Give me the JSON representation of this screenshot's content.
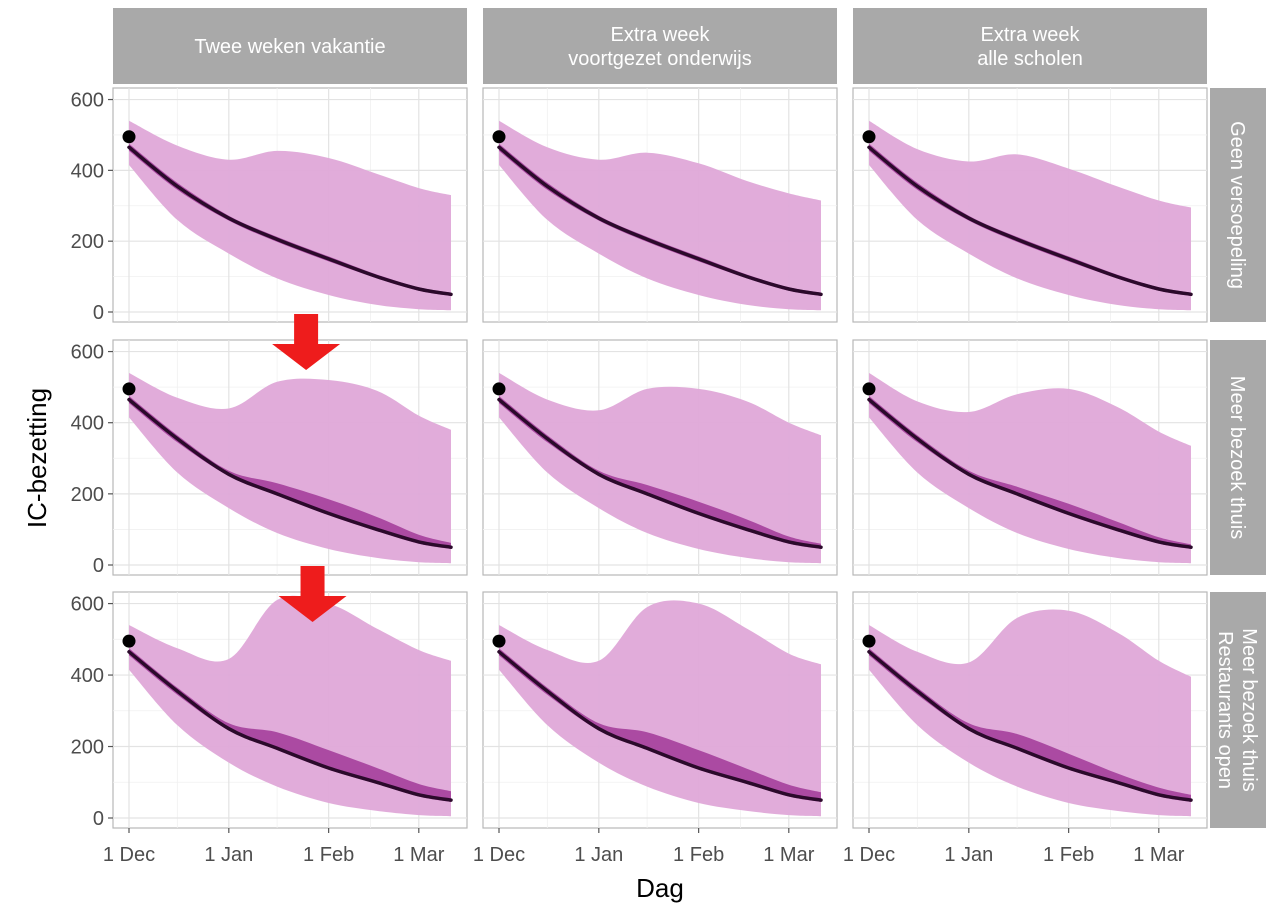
{
  "chart_data": {
    "type": "area",
    "xlabel": "Dag",
    "ylabel": "IC-bezetting",
    "x_ticks": [
      "1 Dec",
      "1 Jan",
      "1 Feb",
      "1 Mar"
    ],
    "x_tick_dates": [
      "2020-12-01",
      "2021-01-01",
      "2021-02-01",
      "2021-03-01"
    ],
    "xlim": [
      "2020-12-01",
      "2021-03-11"
    ],
    "y_ticks": [
      0,
      200,
      400,
      600
    ],
    "ylim": [
      0,
      610
    ],
    "grid": true,
    "colors": {
      "wide_band": "#dfa8d8",
      "narrow_band": "#a8449f",
      "median_line": "#2b0a2b",
      "observed_point": "#000000",
      "arrow": "#ee1c1c",
      "strip": "#a9a9a9"
    },
    "observed": {
      "x": "2020-12-01",
      "y": 495
    },
    "x": [
      "2020-12-01",
      "2020-12-16",
      "2021-01-01",
      "2021-01-16",
      "2021-02-01",
      "2021-02-16",
      "2021-03-01",
      "2021-03-11"
    ],
    "columns": [
      "Twee weken vakantie",
      "Extra week\nvoortgezet onderwijs",
      "Extra week\nalle scholen"
    ],
    "rows": [
      "Geen versoepeling",
      "Meer bezoek thuis",
      "Meer bezoek thuis\nRestaurants open"
    ],
    "panels": [
      {
        "row": 0,
        "col": 0,
        "median": [
          465,
          355,
          265,
          205,
          150,
          100,
          65,
          50
        ],
        "narrow_lower": [
          455,
          345,
          258,
          198,
          143,
          95,
          60,
          45
        ],
        "narrow_upper": [
          475,
          365,
          272,
          212,
          157,
          106,
          70,
          55
        ],
        "wide_lower": [
          415,
          260,
          165,
          95,
          48,
          20,
          8,
          5
        ],
        "wide_upper": [
          540,
          470,
          430,
          455,
          435,
          390,
          350,
          330
        ]
      },
      {
        "row": 0,
        "col": 1,
        "median": [
          465,
          355,
          265,
          205,
          150,
          100,
          65,
          50
        ],
        "narrow_lower": [
          455,
          345,
          258,
          198,
          143,
          95,
          60,
          45
        ],
        "narrow_upper": [
          475,
          365,
          272,
          212,
          157,
          106,
          70,
          55
        ],
        "wide_lower": [
          415,
          260,
          165,
          95,
          48,
          20,
          8,
          5
        ],
        "wide_upper": [
          540,
          465,
          430,
          450,
          420,
          370,
          335,
          315
        ]
      },
      {
        "row": 0,
        "col": 2,
        "median": [
          465,
          355,
          265,
          205,
          150,
          100,
          65,
          50
        ],
        "narrow_lower": [
          455,
          345,
          258,
          198,
          143,
          95,
          60,
          45
        ],
        "narrow_upper": [
          475,
          365,
          272,
          212,
          157,
          106,
          70,
          55
        ],
        "wide_lower": [
          415,
          260,
          165,
          95,
          48,
          20,
          8,
          5
        ],
        "wide_upper": [
          540,
          460,
          425,
          445,
          405,
          355,
          315,
          295
        ]
      },
      {
        "row": 1,
        "col": 0,
        "median": [
          465,
          355,
          255,
          200,
          145,
          100,
          65,
          50
        ],
        "narrow_lower": [
          455,
          345,
          250,
          195,
          140,
          95,
          60,
          45
        ],
        "narrow_upper": [
          475,
          365,
          265,
          230,
          185,
          135,
          85,
          62
        ],
        "wide_lower": [
          415,
          260,
          160,
          90,
          45,
          20,
          8,
          5
        ],
        "wide_upper": [
          540,
          470,
          440,
          515,
          520,
          490,
          420,
          380
        ]
      },
      {
        "row": 1,
        "col": 1,
        "median": [
          465,
          355,
          255,
          200,
          145,
          100,
          65,
          50
        ],
        "narrow_lower": [
          455,
          345,
          250,
          195,
          140,
          95,
          60,
          45
        ],
        "narrow_upper": [
          475,
          365,
          265,
          225,
          178,
          128,
          80,
          60
        ],
        "wide_lower": [
          415,
          260,
          160,
          90,
          45,
          20,
          8,
          5
        ],
        "wide_upper": [
          540,
          465,
          435,
          495,
          495,
          460,
          400,
          365
        ]
      },
      {
        "row": 1,
        "col": 2,
        "median": [
          465,
          355,
          255,
          200,
          145,
          100,
          65,
          50
        ],
        "narrow_lower": [
          455,
          345,
          250,
          195,
          140,
          95,
          60,
          45
        ],
        "narrow_upper": [
          475,
          365,
          265,
          220,
          172,
          122,
          78,
          58
        ],
        "wide_lower": [
          415,
          260,
          160,
          90,
          45,
          20,
          8,
          5
        ],
        "wide_upper": [
          540,
          460,
          430,
          480,
          495,
          445,
          375,
          335
        ]
      },
      {
        "row": 2,
        "col": 0,
        "median": [
          465,
          355,
          250,
          195,
          140,
          100,
          65,
          50
        ],
        "narrow_lower": [
          455,
          345,
          245,
          190,
          135,
          95,
          60,
          45
        ],
        "narrow_upper": [
          475,
          365,
          265,
          240,
          190,
          140,
          95,
          75
        ],
        "wide_lower": [
          415,
          260,
          155,
          88,
          42,
          20,
          8,
          5
        ],
        "wide_upper": [
          540,
          475,
          445,
          610,
          600,
          530,
          470,
          440
        ]
      },
      {
        "row": 2,
        "col": 1,
        "median": [
          465,
          355,
          250,
          195,
          140,
          100,
          65,
          50
        ],
        "narrow_lower": [
          455,
          345,
          245,
          190,
          135,
          95,
          60,
          45
        ],
        "narrow_upper": [
          475,
          365,
          265,
          240,
          190,
          138,
          93,
          72
        ],
        "wide_lower": [
          415,
          260,
          155,
          88,
          42,
          20,
          8,
          5
        ],
        "wide_upper": [
          540,
          470,
          440,
          590,
          600,
          530,
          460,
          430
        ]
      },
      {
        "row": 2,
        "col": 2,
        "median": [
          465,
          355,
          250,
          195,
          140,
          100,
          65,
          50
        ],
        "narrow_lower": [
          455,
          345,
          245,
          190,
          135,
          95,
          60,
          45
        ],
        "narrow_upper": [
          475,
          365,
          265,
          235,
          180,
          125,
          85,
          65
        ],
        "wide_lower": [
          415,
          260,
          155,
          88,
          42,
          20,
          8,
          5
        ],
        "wide_upper": [
          540,
          465,
          435,
          560,
          580,
          520,
          440,
          395
        ]
      }
    ],
    "annotations": [
      {
        "type": "arrow",
        "row": 1,
        "col": 0,
        "x": "2021-01-25",
        "pointing": "down",
        "color": "#ee1c1c"
      },
      {
        "type": "arrow",
        "row": 2,
        "col": 0,
        "x": "2021-01-27",
        "pointing": "down",
        "color": "#ee1c1c"
      }
    ]
  }
}
